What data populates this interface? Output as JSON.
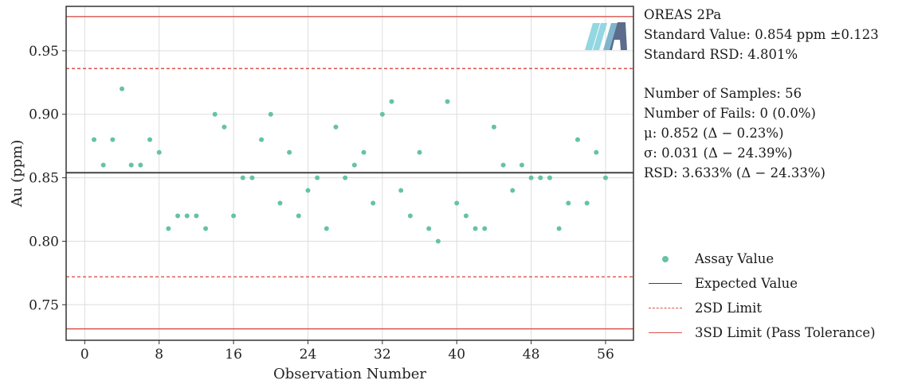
{
  "chart_data": {
    "type": "scatter",
    "xlabel": "Observation Number",
    "ylabel": "Au (ppm)",
    "xlim": [
      -2,
      59
    ],
    "ylim": [
      0.722,
      0.985
    ],
    "x_ticks": [
      0,
      8,
      16,
      24,
      32,
      40,
      48,
      56
    ],
    "y_ticks": [
      0.75,
      0.8,
      0.85,
      0.9,
      0.95
    ],
    "y_tick_labels": [
      "0.75",
      "0.80",
      "0.85",
      "0.90",
      "0.95"
    ],
    "grid": true,
    "series": [
      {
        "name": "Assay Value",
        "color": "#66c2a5",
        "x": [
          1,
          2,
          3,
          4,
          5,
          6,
          7,
          8,
          9,
          10,
          11,
          12,
          13,
          14,
          15,
          16,
          17,
          18,
          19,
          20,
          21,
          22,
          23,
          24,
          25,
          26,
          27,
          28,
          29,
          30,
          31,
          32,
          33,
          34,
          35,
          36,
          37,
          38,
          39,
          40,
          41,
          42,
          43,
          44,
          45,
          46,
          47,
          48,
          49,
          50,
          51,
          52,
          53,
          54,
          55,
          56
        ],
        "y": [
          0.88,
          0.86,
          0.88,
          0.92,
          0.86,
          0.86,
          0.88,
          0.87,
          0.81,
          0.82,
          0.82,
          0.82,
          0.81,
          0.9,
          0.89,
          0.82,
          0.85,
          0.85,
          0.88,
          0.9,
          0.83,
          0.87,
          0.82,
          0.84,
          0.85,
          0.81,
          0.89,
          0.85,
          0.86,
          0.87,
          0.83,
          0.9,
          0.91,
          0.84,
          0.82,
          0.87,
          0.81,
          0.8,
          0.91,
          0.83,
          0.82,
          0.81,
          0.81,
          0.89,
          0.86,
          0.84,
          0.86,
          0.85,
          0.85,
          0.85,
          0.81,
          0.83,
          0.88,
          0.83,
          0.87,
          0.85
        ]
      }
    ],
    "reference_lines": [
      {
        "name": "Expected Value",
        "y": 0.854,
        "color": "#444444",
        "style": "solid"
      },
      {
        "name": "2SD Limit",
        "y": 0.936,
        "color": "#d9534f",
        "style": "dashed"
      },
      {
        "name": "2SD Limit",
        "y": 0.772,
        "color": "#d9534f",
        "style": "dashed"
      },
      {
        "name": "3SD Limit (Pass Tolerance)",
        "y": 0.977,
        "color": "#d9534f",
        "style": "solid"
      },
      {
        "name": "3SD Limit (Pass Tolerance)",
        "y": 0.731,
        "color": "#d9534f",
        "style": "solid"
      }
    ],
    "legend_placement": "bottom-right, outside plot"
  },
  "info": {
    "standard_name": "OREAS 2Pa",
    "standard_value": "Standard Value: 0.854 ppm ±0.123",
    "standard_rsd": "Standard RSD: 4.801%",
    "num_samples": "Number of Samples: 56",
    "num_fails": "Number of Fails: 0 (0.0%)",
    "mu": "μ: 0.852 (Δ − 0.23%)",
    "sigma": "σ: 0.031 (Δ − 24.39%)",
    "rsd": "RSD: 3.633% (Δ − 24.33%)"
  },
  "legend": {
    "assay": "Assay Value",
    "expected": "Expected Value",
    "sd2": "2SD Limit",
    "sd3": "3SD Limit (Pass Tolerance)"
  },
  "logo": {
    "letter": "A",
    "colors": [
      "#7fd0dc",
      "#5d6b8c"
    ]
  }
}
